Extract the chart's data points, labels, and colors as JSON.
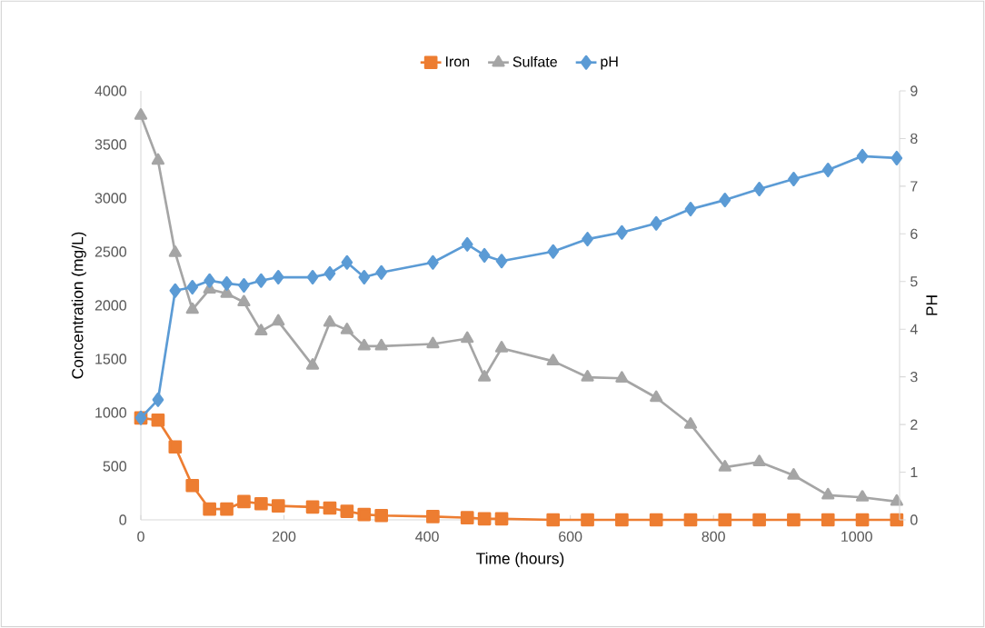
{
  "chart_data": {
    "type": "line",
    "xlabel": "Time (hours)",
    "ylabel": "Concentration (mg/L)",
    "y2label": "PH",
    "x": [
      0,
      24,
      48,
      72,
      96,
      120,
      144,
      168,
      192,
      240,
      264,
      288,
      312,
      336,
      408,
      456,
      480,
      504,
      576,
      624,
      672,
      720,
      768,
      816,
      864,
      912,
      960,
      1008,
      1056
    ],
    "series": [
      {
        "name": "Iron",
        "color": "#ed7d31",
        "marker": "square",
        "values": [
          950,
          930,
          680,
          320,
          100,
          100,
          170,
          150,
          130,
          120,
          110,
          80,
          50,
          40,
          30,
          20,
          10,
          10,
          0,
          0,
          0,
          0,
          0,
          0,
          0,
          0,
          0,
          0,
          0
        ]
      },
      {
        "name": "Sulfate",
        "color": "#a5a5a5",
        "marker": "triangle",
        "values": [
          3770,
          3350,
          2490,
          1960,
          2150,
          2110,
          2030,
          1760,
          1850,
          1440,
          1840,
          1770,
          1620,
          1620,
          1640,
          1690,
          1330,
          1600,
          1480,
          1330,
          1320,
          1140,
          890,
          490,
          540,
          415,
          230,
          210,
          170
        ]
      },
      {
        "name": "pH",
        "color": "#5b9bd5",
        "marker": "diamond",
        "axis": "y2",
        "values": [
          2.14,
          2.52,
          4.81,
          4.88,
          5.02,
          4.96,
          4.92,
          5.02,
          5.09,
          5.09,
          5.17,
          5.4,
          5.09,
          5.19,
          5.4,
          5.78,
          5.55,
          5.43,
          5.63,
          5.89,
          6.03,
          6.22,
          6.52,
          6.71,
          6.94,
          7.15,
          7.34,
          7.63,
          7.59
        ]
      }
    ],
    "xlim": [
      0,
      1060
    ],
    "xticks": [
      0,
      200,
      400,
      600,
      800,
      1000
    ],
    "ylim": [
      0,
      4000
    ],
    "yticks": [
      0,
      500,
      1000,
      1500,
      2000,
      2500,
      3000,
      3500,
      4000
    ],
    "y2lim": [
      0,
      9
    ],
    "y2ticks": [
      0,
      1,
      2,
      3,
      4,
      5,
      6,
      7,
      8,
      9
    ],
    "legend": "top",
    "grid": false
  }
}
